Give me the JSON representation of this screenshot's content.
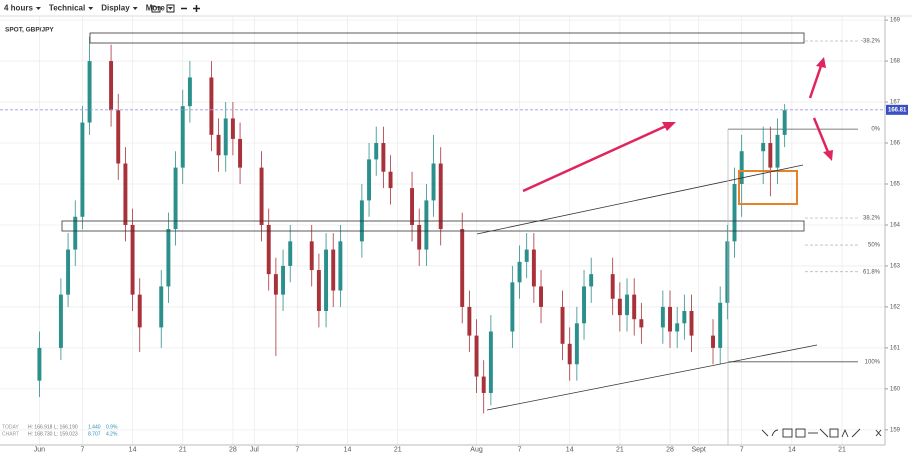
{
  "toolbar": [
    "4 hours",
    "Technical",
    "Display",
    "More"
  ],
  "chart_data": {
    "type": "candlestick",
    "title": "SPOT, GBP/JPY",
    "x": [
      0,
      3,
      4,
      5,
      6,
      7,
      10,
      11,
      12,
      13,
      14,
      17,
      18,
      19,
      20,
      21,
      24,
      25,
      26,
      27,
      28,
      31,
      32,
      33,
      34,
      35,
      38,
      39,
      40,
      41,
      42,
      45,
      46,
      47,
      48,
      49,
      52,
      53,
      54,
      55,
      56,
      59,
      60,
      61,
      62,
      63,
      66,
      67,
      68,
      69,
      70,
      73,
      74,
      75,
      76,
      77,
      80,
      81,
      82,
      83,
      84,
      87,
      88,
      89,
      90,
      91,
      94,
      95,
      96,
      97,
      98,
      101,
      102,
      103,
      104
    ],
    "open": [
      160.2,
      161.0,
      162.3,
      163.4,
      164.2,
      166.5,
      168.0,
      166.8,
      165.5,
      164.0,
      162.3,
      161.5,
      162.5,
      163.9,
      165.4,
      166.9,
      167.6,
      166.2,
      165.7,
      166.6,
      166.1,
      165.4,
      164.0,
      162.8,
      162.3,
      163.0,
      163.6,
      162.9,
      161.9,
      163.4,
      162.4,
      163.6,
      164.6,
      165.6,
      166.0,
      165.3,
      164.9,
      164.0,
      163.4,
      164.6,
      165.5,
      163.9,
      162.0,
      161.3,
      160.3,
      159.9,
      161.4,
      162.6,
      163.1,
      163.4,
      162.5,
      162.0,
      161.1,
      160.6,
      161.6,
      162.5,
      162.8,
      162.2,
      161.8,
      162.3,
      161.7,
      161.5,
      162.0,
      161.4,
      161.6,
      161.9,
      161.3,
      161.0,
      162.1,
      163.6,
      165.0,
      165.8,
      166.0,
      165.4,
      166.2
    ],
    "high": [
      161.4,
      162.7,
      163.8,
      164.6,
      166.9,
      168.6,
      168.4,
      167.2,
      165.9,
      164.4,
      162.7,
      162.9,
      164.3,
      165.8,
      167.3,
      168.0,
      168.0,
      166.6,
      167.0,
      167.0,
      166.5,
      165.8,
      164.4,
      163.2,
      163.4,
      164.0,
      164.0,
      163.3,
      163.8,
      163.8,
      164.0,
      165.0,
      166.0,
      166.4,
      166.4,
      165.7,
      165.3,
      164.4,
      165.0,
      166.2,
      165.9,
      164.3,
      162.4,
      161.7,
      160.7,
      161.8,
      163.0,
      163.5,
      163.8,
      163.8,
      162.9,
      162.4,
      161.5,
      162.0,
      162.9,
      163.2,
      163.2,
      162.6,
      162.7,
      162.7,
      162.1,
      162.4,
      162.4,
      162.0,
      162.3,
      162.3,
      161.7,
      162.5,
      164.0,
      165.4,
      166.2,
      166.4,
      166.4,
      166.6,
      166.95
    ],
    "low": [
      159.8,
      160.7,
      162.0,
      163.0,
      163.9,
      166.2,
      166.4,
      165.1,
      163.6,
      161.9,
      160.9,
      161.0,
      162.1,
      163.5,
      165.0,
      166.5,
      165.8,
      165.3,
      165.3,
      165.7,
      165.0,
      163.6,
      162.4,
      160.8,
      161.9,
      162.6,
      162.5,
      161.5,
      161.5,
      162.0,
      162.0,
      163.2,
      164.2,
      165.2,
      164.9,
      164.5,
      163.6,
      163.0,
      163.0,
      164.2,
      163.5,
      161.6,
      160.9,
      159.9,
      159.4,
      159.6,
      161.0,
      162.2,
      162.7,
      162.1,
      161.6,
      160.7,
      160.2,
      160.2,
      161.2,
      162.1,
      161.8,
      161.4,
      161.4,
      161.3,
      161.1,
      161.1,
      161.0,
      161.0,
      161.2,
      160.9,
      160.6,
      160.6,
      161.7,
      163.2,
      164.2,
      165.0,
      164.7,
      165.0,
      165.9
    ],
    "close": [
      161.0,
      162.3,
      163.4,
      164.2,
      166.5,
      168.0,
      166.8,
      165.5,
      164.0,
      162.3,
      161.5,
      162.5,
      163.9,
      165.4,
      166.9,
      167.6,
      166.2,
      165.7,
      166.6,
      166.1,
      165.4,
      164.0,
      162.8,
      162.3,
      163.0,
      163.6,
      162.9,
      161.9,
      163.4,
      162.4,
      163.6,
      164.6,
      165.6,
      166.0,
      165.3,
      164.9,
      164.0,
      163.4,
      164.6,
      165.5,
      163.9,
      162.0,
      161.3,
      160.3,
      159.9,
      161.4,
      162.6,
      163.1,
      163.4,
      162.5,
      162.0,
      161.1,
      160.6,
      161.6,
      162.5,
      162.8,
      162.2,
      161.8,
      162.3,
      161.7,
      161.5,
      162.0,
      161.4,
      161.6,
      161.9,
      161.3,
      161.0,
      162.1,
      163.6,
      165.0,
      165.8,
      166.0,
      165.4,
      166.2,
      166.8
    ],
    "up_color": "#2b8f8c",
    "down_color": "#a8323a",
    "xlim": [
      -5.5,
      118
    ],
    "ylim": [
      158.63,
      169.1
    ],
    "xticks": [
      {
        "value": 0,
        "label": "Jun"
      },
      {
        "value": 6,
        "label": "7"
      },
      {
        "value": 13,
        "label": "14"
      },
      {
        "value": 20,
        "label": "21"
      },
      {
        "value": 27,
        "label": "28"
      },
      {
        "value": 30,
        "label": "Jul"
      },
      {
        "value": 36,
        "label": "7"
      },
      {
        "value": 43,
        "label": "14"
      },
      {
        "value": 50,
        "label": "21"
      },
      {
        "value": 61,
        "label": "Aug"
      },
      {
        "value": 67,
        "label": "7"
      },
      {
        "value": 74,
        "label": "14"
      },
      {
        "value": 81,
        "label": "21"
      },
      {
        "value": 88,
        "label": "28"
      },
      {
        "value": 92,
        "label": "Sept"
      },
      {
        "value": 98,
        "label": "7"
      },
      {
        "value": 105,
        "label": "14"
      },
      {
        "value": 112,
        "label": "21"
      }
    ],
    "yticks": [
      159,
      160,
      161,
      162,
      163,
      164,
      165,
      166,
      167,
      168,
      169
    ],
    "grid": true,
    "last_price": 166.81,
    "fib_levels": [
      {
        "value": 168.49,
        "label": "-38.2%"
      },
      {
        "value": 166.34,
        "label": "0%"
      },
      {
        "value": 164.17,
        "label": "38.2%"
      },
      {
        "value": 163.51,
        "label": "50%"
      },
      {
        "value": 162.86,
        "label": "61.8%"
      },
      {
        "value": 160.66,
        "label": "100%"
      }
    ],
    "info": [
      {
        "label": "TODAY",
        "high": "H: 166.918",
        "low": "L: 166.190",
        "change": "1.440",
        "pct": "0.9%"
      },
      {
        "label": "CHART",
        "high": "H: 168.730",
        "low": "L: 159.023",
        "change": "8.707",
        "pct": "4.2%"
      }
    ]
  }
}
